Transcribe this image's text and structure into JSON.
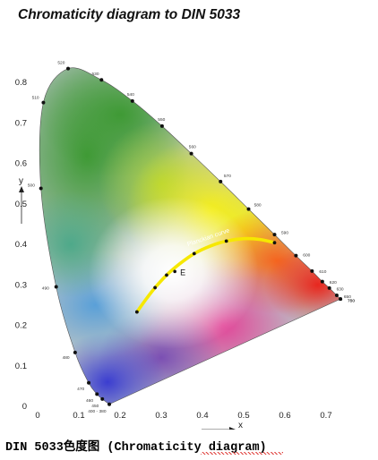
{
  "chart_data": {
    "type": "scatter",
    "title": "Chromaticity diagram to DIN 5033",
    "xlabel": "x",
    "ylabel": "y",
    "xlim": [
      0,
      0.75
    ],
    "ylim": [
      0,
      0.85
    ],
    "x_ticks": [
      "0",
      "0.1",
      "0.2",
      "0.3",
      "0.4",
      "0.5",
      "0.6",
      "0.7"
    ],
    "y_ticks": [
      "0.1",
      "0.2",
      "0.3",
      "0.4",
      "0.5",
      "0.6",
      "0.7",
      "0.8"
    ],
    "y_zero_label": "0",
    "spectral_locus": [
      {
        "label": "400 - 380",
        "x": 0.174,
        "y": 0.005
      },
      {
        "label": "450",
        "x": 0.157,
        "y": 0.018
      },
      {
        "label": "460",
        "x": 0.144,
        "y": 0.03
      },
      {
        "label": "470",
        "x": 0.124,
        "y": 0.058
      },
      {
        "label": "480",
        "x": 0.091,
        "y": 0.133
      },
      {
        "label": "490",
        "x": 0.045,
        "y": 0.295
      },
      {
        "label": "500",
        "x": 0.008,
        "y": 0.538
      },
      {
        "label": "510",
        "x": 0.014,
        "y": 0.75
      },
      {
        "label": "520",
        "x": 0.074,
        "y": 0.834
      },
      {
        "label": "530",
        "x": 0.155,
        "y": 0.806
      },
      {
        "label": "540",
        "x": 0.23,
        "y": 0.754
      },
      {
        "label": "550",
        "x": 0.302,
        "y": 0.692
      },
      {
        "label": "560",
        "x": 0.373,
        "y": 0.624
      },
      {
        "label": "570",
        "x": 0.444,
        "y": 0.555
      },
      {
        "label": "580",
        "x": 0.512,
        "y": 0.487
      },
      {
        "label": "590",
        "x": 0.575,
        "y": 0.424
      },
      {
        "label": "600",
        "x": 0.627,
        "y": 0.372
      },
      {
        "label": "610",
        "x": 0.666,
        "y": 0.334
      },
      {
        "label": "620",
        "x": 0.691,
        "y": 0.308
      },
      {
        "label": "630",
        "x": 0.708,
        "y": 0.292
      },
      {
        "label": "650",
        "x": 0.726,
        "y": 0.274
      },
      {
        "label": "700",
        "x": 0.735,
        "y": 0.265
      },
      {
        "label": "750",
        "x": 0.735,
        "y": 0.265
      }
    ],
    "planckian_curve": {
      "label": "Planckian curve",
      "points": [
        {
          "x": 0.241,
          "y": 0.233
        },
        {
          "x": 0.265,
          "y": 0.267
        },
        {
          "x": 0.285,
          "y": 0.293
        },
        {
          "x": 0.313,
          "y": 0.324
        },
        {
          "x": 0.345,
          "y": 0.352
        },
        {
          "x": 0.38,
          "y": 0.377
        },
        {
          "x": 0.42,
          "y": 0.396
        },
        {
          "x": 0.458,
          "y": 0.408
        },
        {
          "x": 0.5,
          "y": 0.414
        },
        {
          "x": 0.54,
          "y": 0.412
        },
        {
          "x": 0.575,
          "y": 0.404
        }
      ],
      "markers": [
        {
          "x": 0.241,
          "y": 0.233
        },
        {
          "x": 0.285,
          "y": 0.293
        },
        {
          "x": 0.313,
          "y": 0.324
        },
        {
          "x": 0.38,
          "y": 0.377
        },
        {
          "x": 0.458,
          "y": 0.408
        },
        {
          "x": 0.575,
          "y": 0.404
        }
      ]
    },
    "white_point": {
      "label": "E",
      "x": 0.333,
      "y": 0.333
    }
  },
  "caption": "DIN 5033色度图 (Chromaticity diagram)"
}
